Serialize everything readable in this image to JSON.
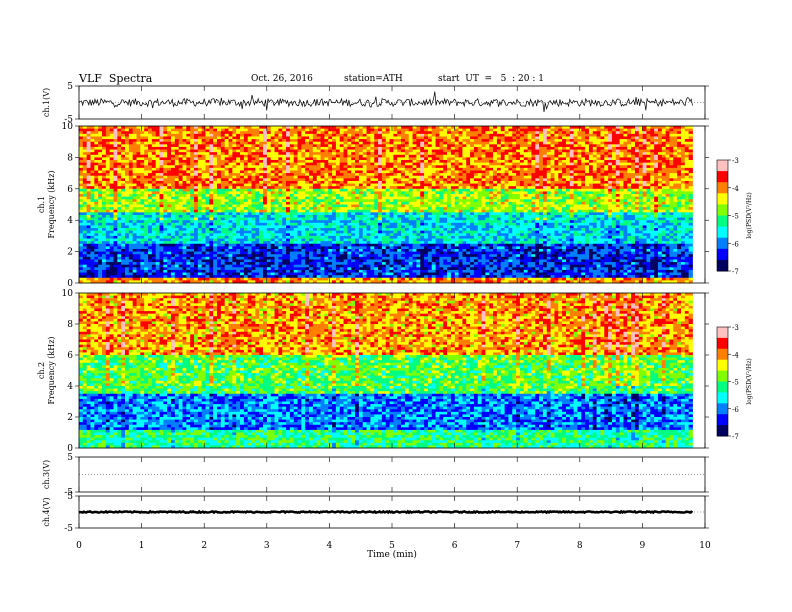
{
  "header": {
    "title": "VLF  Spectra",
    "date": "Oct. 26, 2016",
    "station": "station=ATH",
    "start_ut": "start  UT  =   5  : 20 : 1"
  },
  "chart_data": [
    {
      "type": "line",
      "panel": "ch1-waveform",
      "ylabel": "ch.1(V)",
      "ylim": [
        -5,
        5
      ],
      "y_ticks": [
        "5",
        "-5"
      ],
      "series": [
        {
          "x_range_min": [
            0,
            9.8
          ],
          "mean": 0,
          "amplitude_v": 1.2,
          "color": "#000000"
        }
      ]
    },
    {
      "type": "heatmap",
      "panel": "ch1-spectrogram",
      "ylabel": "ch.1\nFrequency  (kHz)",
      "ylim": [
        0,
        10
      ],
      "y_ticks": [
        "0",
        "2",
        "4",
        "6",
        "8",
        "10"
      ],
      "x_range_min": [
        0,
        9.8
      ],
      "log_psd_profile": [
        {
          "freq_khz": [
            0,
            0.4
          ],
          "log_psd": -4.0
        },
        {
          "freq_khz": [
            0.4,
            2.5
          ],
          "log_psd": -6.3
        },
        {
          "freq_khz": [
            2.5,
            4.5
          ],
          "log_psd": -5.6
        },
        {
          "freq_khz": [
            4.5,
            6.0
          ],
          "log_psd": -4.7
        },
        {
          "freq_khz": [
            6.0,
            10
          ],
          "log_psd": -4.0
        }
      ],
      "colorbar": {
        "label": "log(PSD(V²/Hz)",
        "range": [
          -7,
          -3
        ],
        "ticks": [
          "-3",
          "-4",
          "-5",
          "-6",
          "-7"
        ]
      }
    },
    {
      "type": "heatmap",
      "panel": "ch2-spectrogram",
      "ylabel": "ch.2\nFrequency  (kHz)",
      "ylim": [
        0,
        10
      ],
      "y_ticks": [
        "0",
        "2",
        "4",
        "6",
        "8",
        "10"
      ],
      "x_range_min": [
        0,
        9.8
      ],
      "log_psd_profile": [
        {
          "freq_khz": [
            0,
            1.2
          ],
          "log_psd": -5.2
        },
        {
          "freq_khz": [
            1.2,
            3.5
          ],
          "log_psd": -6.0
        },
        {
          "freq_khz": [
            3.5,
            6.0
          ],
          "log_psd": -5.0
        },
        {
          "freq_khz": [
            6.0,
            10
          ],
          "log_psd": -4.1
        }
      ],
      "colorbar": {
        "label": "log(PSD(V²/Hz)",
        "range": [
          -7,
          -3
        ],
        "ticks": [
          "-3",
          "-4",
          "-5",
          "-6",
          "-7"
        ]
      }
    },
    {
      "type": "line",
      "panel": "ch3-waveform",
      "ylabel": "ch.3(V)",
      "ylim": [
        -5,
        5
      ],
      "y_ticks": [
        "5",
        "-5"
      ],
      "series": []
    },
    {
      "type": "line",
      "panel": "ch4-waveform",
      "ylabel": "ch.4(V)",
      "ylim": [
        -5,
        5
      ],
      "y_ticks": [
        "5",
        "-5"
      ],
      "series": [
        {
          "x_range_min": [
            0,
            9.8
          ],
          "mean": 0,
          "amplitude_v": 0.2,
          "color": "#000000"
        }
      ]
    }
  ],
  "x_axis": {
    "xlabel": "Time  (min)",
    "xlim": [
      0,
      10
    ],
    "ticks": [
      "0",
      "1",
      "2",
      "3",
      "4",
      "5",
      "6",
      "7",
      "8",
      "9",
      "10"
    ]
  },
  "colormap": [
    "#000060",
    "#0000ff",
    "#0080ff",
    "#00ffff",
    "#00ff80",
    "#80ff00",
    "#ffff00",
    "#ff8000",
    "#ff0000",
    "#ffc0c0"
  ]
}
